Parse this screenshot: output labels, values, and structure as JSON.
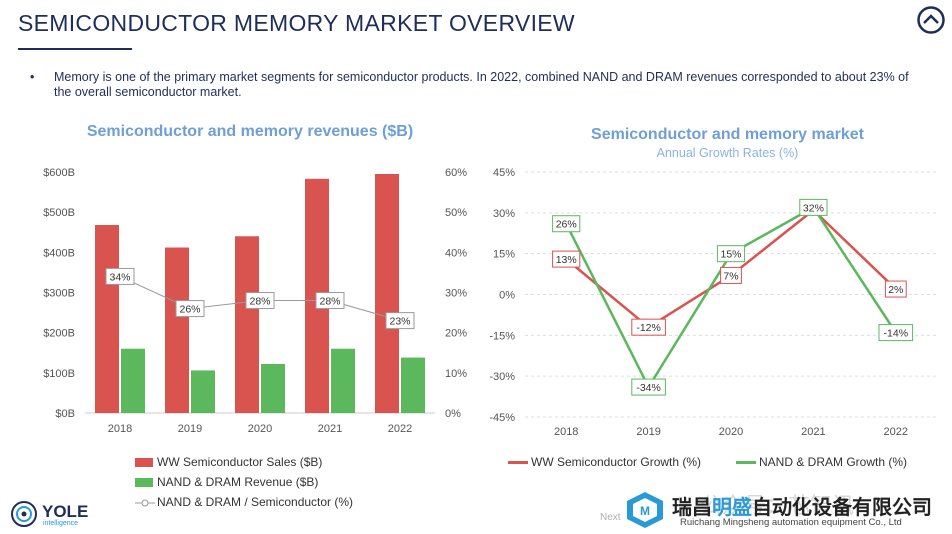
{
  "header": {
    "title": "SEMICONDUCTOR MEMORY MARKET OVERVIEW",
    "bullet_marker": "•",
    "bullet": "Memory is one of the primary market segments for semiconductor products. In 2022, combined NAND and DRAM revenues corresponded to about 23% of the overall semiconductor market."
  },
  "left_chart": {
    "title": "Semiconductor and memory revenues ($B)",
    "legend": [
      "WW Semiconductor Sales ($B)",
      "NAND & DRAM Revenue ($B)",
      "NAND & DRAM / Semiconductor (%)"
    ]
  },
  "right_chart": {
    "title": "Semiconductor and memory market",
    "subtitle": "Annual Growth Rates (%)",
    "legend": [
      "WW Semiconductor Growth (%)",
      "NAND & DRAM Growth (%)"
    ]
  },
  "footer": {
    "logo_text": "YOLE",
    "logo_sub": "intelligence",
    "next_text": "Next",
    "watermark_cn_1": "瑞昌",
    "watermark_cn_2": "明盛",
    "watermark_cn_3": "自动化设备有限公司",
    "watermark_en": "Ruichang Mingsheng automation equipment Co., Ltd",
    "watermark_faint": "公众号：芯智讯"
  },
  "colors": {
    "title": "#1f2d5a",
    "chart_title": "#6f9fd6",
    "red_bar": "#d9534f",
    "green_bar": "#5cb85c",
    "red_line": "#d9534f",
    "green_line": "#5cb85c",
    "ratio_line": "#999999"
  },
  "icons": {
    "home": "home-up-icon",
    "logo": "yole-logo-icon"
  },
  "chart_data": [
    {
      "type": "bar",
      "title": "Semiconductor and memory revenues ($B)",
      "categories": [
        "2018",
        "2019",
        "2020",
        "2021",
        "2022"
      ],
      "y_ticks": [
        "$0B",
        "$100B",
        "$200B",
        "$300B",
        "$400B",
        "$500B",
        "$600B"
      ],
      "y2_ticks": [
        "0%",
        "10%",
        "20%",
        "30%",
        "40%",
        "50%",
        "60%"
      ],
      "ylim": [
        0,
        600
      ],
      "y2lim": [
        0,
        60
      ],
      "grid": false,
      "legend_position": "bottom-left",
      "series": [
        {
          "name": "WW Semiconductor Sales ($B)",
          "type": "bar",
          "values": [
            468,
            412,
            440,
            583,
            595
          ]
        },
        {
          "name": "NAND & DRAM Revenue ($B)",
          "type": "bar",
          "values": [
            160,
            106,
            122,
            160,
            138
          ]
        },
        {
          "name": "NAND & DRAM / Semiconductor (%)",
          "type": "line",
          "axis": "right",
          "values": [
            34,
            26,
            28,
            28,
            23
          ],
          "labels": [
            "34%",
            "26%",
            "28%",
            "28%",
            "23%"
          ]
        }
      ]
    },
    {
      "type": "line",
      "title": "Semiconductor and memory market",
      "subtitle": "Annual Growth Rates (%)",
      "categories": [
        "2018",
        "2019",
        "2020",
        "2021",
        "2022"
      ],
      "y_ticks": [
        "45%",
        "30%",
        "15%",
        "0%",
        "-15%",
        "-30%",
        "-45%"
      ],
      "ylim": [
        -45,
        45
      ],
      "grid": true,
      "legend_position": "bottom",
      "series": [
        {
          "name": "WW Semiconductor Growth (%)",
          "values": [
            13,
            -12,
            7,
            31,
            2
          ],
          "labels": [
            "13%",
            "-12%",
            "7%",
            "",
            "2%"
          ]
        },
        {
          "name": "NAND & DRAM Growth (%)",
          "values": [
            26,
            -34,
            15,
            32,
            -14
          ],
          "labels": [
            "26%",
            "-34%",
            "15%",
            "32%",
            "-14%"
          ]
        }
      ]
    }
  ]
}
